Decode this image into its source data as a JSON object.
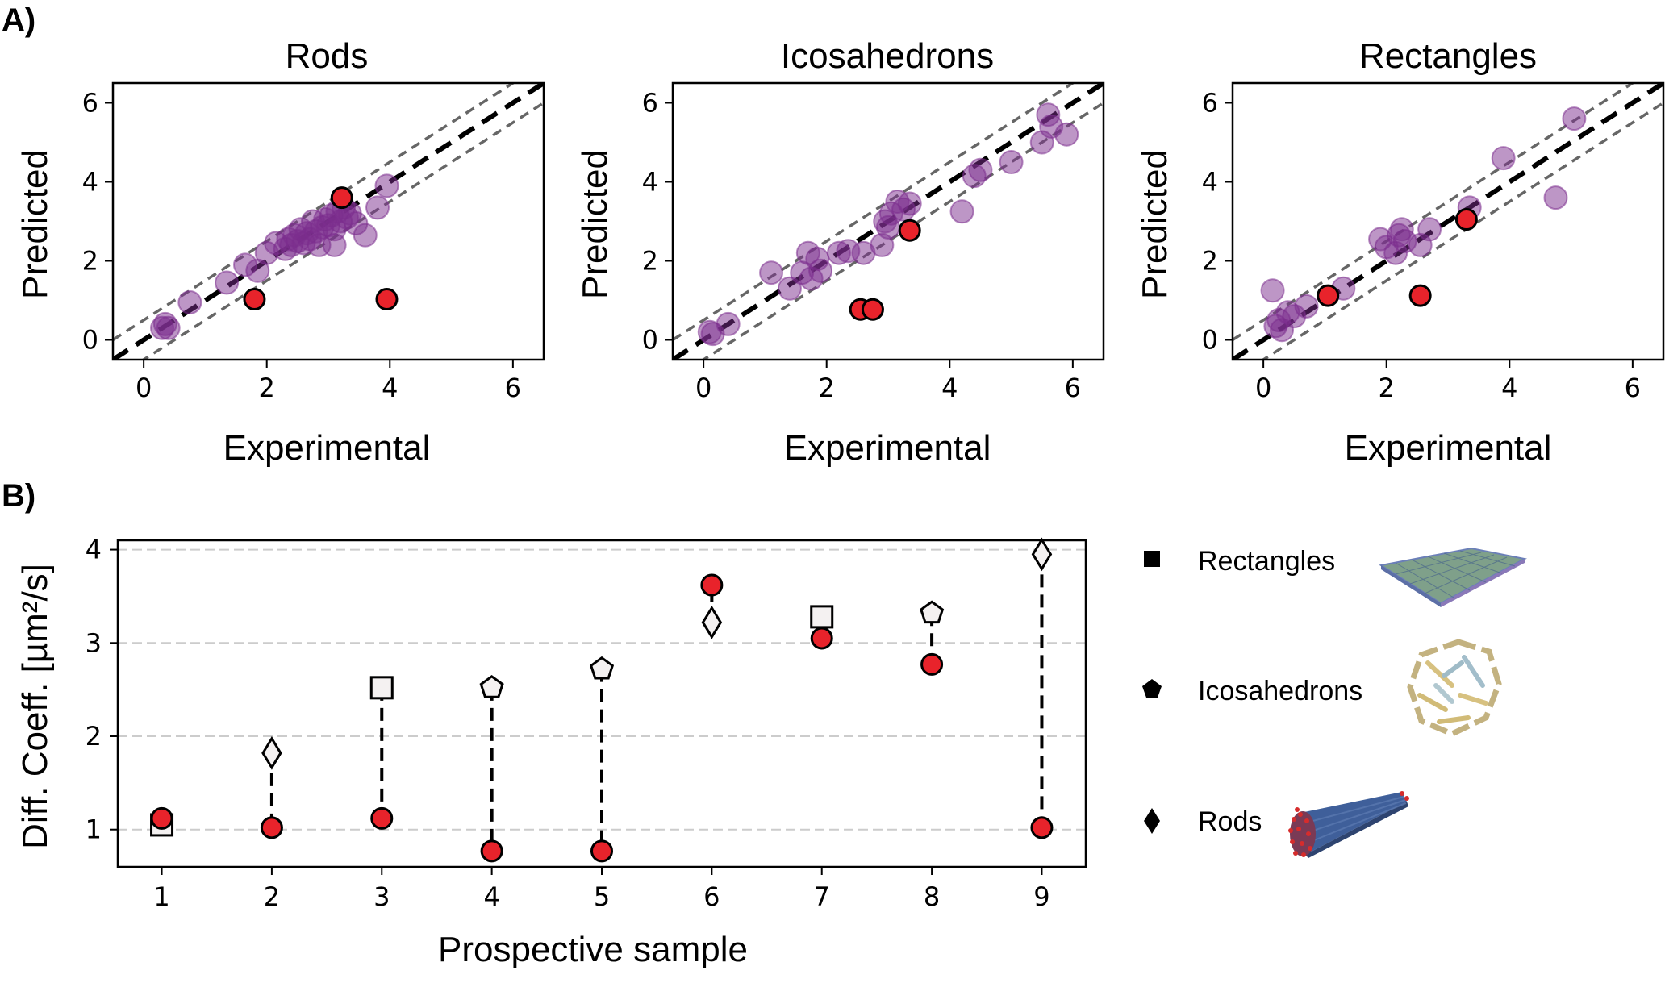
{
  "panel_labels": {
    "a": "A)",
    "b": "B)"
  },
  "colors": {
    "training_point": "#7b2d8e",
    "prospective_point": "#e8232b",
    "diagonal": "#000000",
    "band": "#666666",
    "grid": "#cccccc"
  },
  "chart_data": [
    {
      "type": "scatter",
      "title": "Rods",
      "xlabel": "Experimental",
      "ylabel": "Predicted",
      "xlim": [
        -0.5,
        6.5
      ],
      "ylim": [
        -0.5,
        6.5
      ],
      "xticks": [
        0,
        2,
        4,
        6
      ],
      "yticks": [
        0,
        2,
        4,
        6
      ],
      "band": 0.5,
      "series": [
        {
          "role": "training",
          "points": [
            [
              0.3,
              0.3
            ],
            [
              0.35,
              0.4
            ],
            [
              0.4,
              0.3
            ],
            [
              0.75,
              0.95
            ],
            [
              1.35,
              1.45
            ],
            [
              1.65,
              1.9
            ],
            [
              1.85,
              1.75
            ],
            [
              2.0,
              2.2
            ],
            [
              2.15,
              2.45
            ],
            [
              2.3,
              2.3
            ],
            [
              2.35,
              2.55
            ],
            [
              2.4,
              2.4
            ],
            [
              2.45,
              2.65
            ],
            [
              2.5,
              2.5
            ],
            [
              2.55,
              2.8
            ],
            [
              2.6,
              2.45
            ],
            [
              2.65,
              2.7
            ],
            [
              2.7,
              2.55
            ],
            [
              2.75,
              3.0
            ],
            [
              2.8,
              2.75
            ],
            [
              2.85,
              2.4
            ],
            [
              2.9,
              2.85
            ],
            [
              2.95,
              3.05
            ],
            [
              3.0,
              2.9
            ],
            [
              3.05,
              3.15
            ],
            [
              3.1,
              2.8
            ],
            [
              3.15,
              3.25
            ],
            [
              3.2,
              3.0
            ],
            [
              3.25,
              3.35
            ],
            [
              3.3,
              3.1
            ],
            [
              3.1,
              2.4
            ],
            [
              3.35,
              3.2
            ],
            [
              3.45,
              2.95
            ],
            [
              3.6,
              2.65
            ],
            [
              3.8,
              3.35
            ],
            [
              3.95,
              3.9
            ]
          ]
        },
        {
          "role": "prospective",
          "points": [
            [
              1.8,
              1.03
            ],
            [
              3.22,
              3.6
            ],
            [
              3.95,
              1.03
            ]
          ]
        }
      ]
    },
    {
      "type": "scatter",
      "title": "Icosahedrons",
      "xlabel": "Experimental",
      "ylabel": "Predicted",
      "xlim": [
        -0.5,
        6.5
      ],
      "ylim": [
        -0.5,
        6.5
      ],
      "xticks": [
        0,
        2,
        4,
        6
      ],
      "yticks": [
        0,
        2,
        4,
        6
      ],
      "band": 0.5,
      "series": [
        {
          "role": "training",
          "points": [
            [
              0.1,
              0.2
            ],
            [
              0.15,
              0.15
            ],
            [
              0.4,
              0.4
            ],
            [
              1.1,
              1.7
            ],
            [
              1.4,
              1.3
            ],
            [
              1.6,
              1.7
            ],
            [
              1.7,
              2.2
            ],
            [
              1.75,
              1.55
            ],
            [
              1.85,
              2.05
            ],
            [
              1.9,
              1.75
            ],
            [
              2.2,
              2.2
            ],
            [
              2.35,
              2.25
            ],
            [
              2.6,
              2.2
            ],
            [
              2.9,
              2.4
            ],
            [
              2.95,
              3.0
            ],
            [
              3.0,
              2.85
            ],
            [
              3.05,
              3.2
            ],
            [
              3.15,
              3.5
            ],
            [
              3.25,
              3.3
            ],
            [
              3.35,
              3.45
            ],
            [
              4.2,
              3.25
            ],
            [
              4.4,
              4.15
            ],
            [
              4.5,
              4.3
            ],
            [
              5.0,
              4.5
            ],
            [
              5.5,
              5.0
            ],
            [
              5.6,
              5.7
            ],
            [
              5.65,
              5.4
            ],
            [
              5.9,
              5.2
            ]
          ]
        },
        {
          "role": "prospective",
          "points": [
            [
              2.55,
              0.77
            ],
            [
              2.75,
              0.77
            ],
            [
              3.35,
              2.77
            ]
          ]
        }
      ]
    },
    {
      "type": "scatter",
      "title": "Rectangles",
      "xlabel": "Experimental",
      "ylabel": "Predicted",
      "xlim": [
        -0.5,
        6.5
      ],
      "ylim": [
        -0.5,
        6.5
      ],
      "xticks": [
        0,
        2,
        4,
        6
      ],
      "yticks": [
        0,
        2,
        4,
        6
      ],
      "band": 0.5,
      "series": [
        {
          "role": "training",
          "points": [
            [
              0.15,
              1.25
            ],
            [
              0.2,
              0.35
            ],
            [
              0.25,
              0.5
            ],
            [
              0.3,
              0.25
            ],
            [
              0.4,
              0.7
            ],
            [
              0.5,
              0.6
            ],
            [
              0.7,
              0.85
            ],
            [
              1.3,
              1.3
            ],
            [
              1.9,
              2.55
            ],
            [
              2.0,
              2.35
            ],
            [
              2.15,
              2.2
            ],
            [
              2.2,
              2.65
            ],
            [
              2.25,
              2.8
            ],
            [
              2.3,
              2.5
            ],
            [
              2.55,
              2.4
            ],
            [
              2.7,
              2.8
            ],
            [
              3.35,
              3.35
            ],
            [
              3.9,
              4.6
            ],
            [
              4.75,
              3.6
            ],
            [
              5.05,
              5.6
            ]
          ]
        },
        {
          "role": "prospective",
          "points": [
            [
              1.05,
              1.12
            ],
            [
              2.55,
              1.12
            ],
            [
              3.3,
              3.05
            ]
          ]
        }
      ]
    },
    {
      "type": "scatter",
      "xlabel": "Prospective sample",
      "ylabel": "Diff. Coeff. [µm²/s]",
      "xlim": [
        0.6,
        9.4
      ],
      "ylim": [
        0.6,
        4.1
      ],
      "xticks": [
        1,
        2,
        3,
        4,
        5,
        6,
        7,
        8,
        9
      ],
      "yticks": [
        1,
        2,
        3,
        4
      ],
      "grid": "y-dashed",
      "samples": [
        {
          "x": 1,
          "predicted": 1.05,
          "experimental": 1.12,
          "shape": "square"
        },
        {
          "x": 2,
          "predicted": 1.82,
          "experimental": 1.02,
          "shape": "diamond"
        },
        {
          "x": 3,
          "predicted": 2.52,
          "experimental": 1.12,
          "shape": "square"
        },
        {
          "x": 4,
          "predicted": 2.52,
          "experimental": 0.77,
          "shape": "pentagon"
        },
        {
          "x": 5,
          "predicted": 2.72,
          "experimental": 0.77,
          "shape": "pentagon"
        },
        {
          "x": 6,
          "predicted": 3.22,
          "experimental": 3.62,
          "shape": "diamond"
        },
        {
          "x": 7,
          "predicted": 3.28,
          "experimental": 3.05,
          "shape": "square"
        },
        {
          "x": 8,
          "predicted": 3.32,
          "experimental": 2.77,
          "shape": "pentagon"
        },
        {
          "x": 9,
          "predicted": 3.95,
          "experimental": 1.02,
          "shape": "diamond"
        }
      ],
      "legend": [
        {
          "label": "Rectangles",
          "shape": "square",
          "image": "rectangle-sheet"
        },
        {
          "label": "Icosahedrons",
          "shape": "pentagon",
          "image": "icosahedron-cage"
        },
        {
          "label": "Rods",
          "shape": "diamond",
          "image": "rod-bundle"
        }
      ]
    }
  ]
}
